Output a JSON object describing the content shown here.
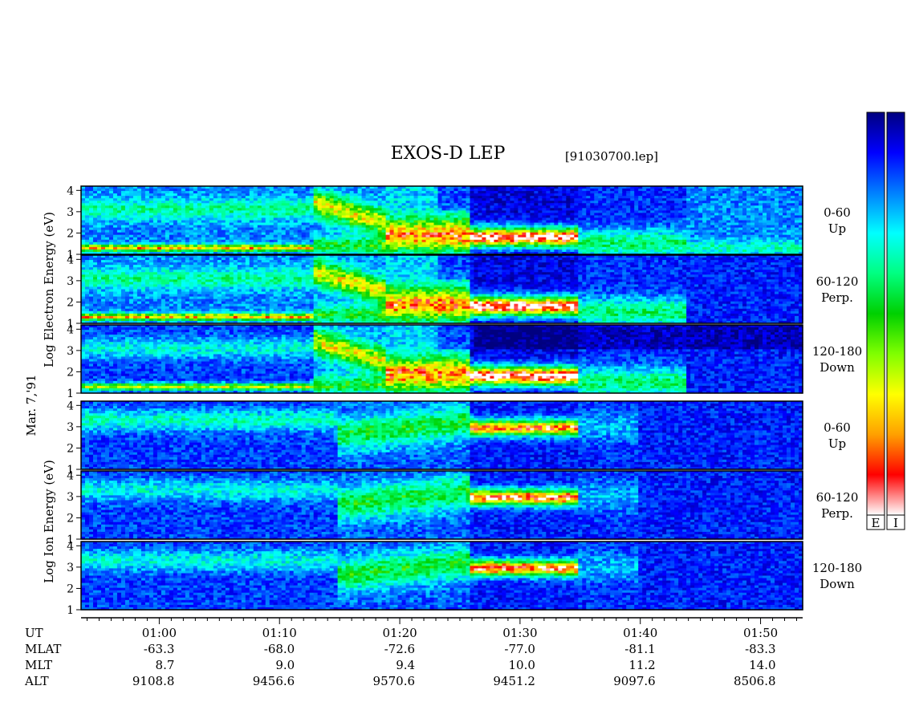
{
  "title": "EXOS-D LEP",
  "file_label": "[91030700.lep]",
  "date_label": "Mar. 7,'91",
  "electron_ylabel": "Log  Electron  Energy (eV)",
  "ion_ylabel": "Log  Ion  Energy (eV)",
  "colorbar_labels": [
    "E",
    "I"
  ],
  "colorbar_colors": [
    "#000080",
    "#0000ff",
    "#0080ff",
    "#00ffff",
    "#00ff80",
    "#00d000",
    "#80ff00",
    "#ffff00",
    "#ffa000",
    "#ff0000",
    "#ffffff"
  ],
  "chart_data": {
    "type": "heatmap",
    "x_unit": "UT",
    "x_range": [
      "00:53:30",
      "01:53:30"
    ],
    "x_ticks": [
      "01:00",
      "01:10",
      "01:20",
      "01:30",
      "01:40",
      "01:50"
    ],
    "ephemeris": [
      {
        "label": "UT",
        "values": [
          "01:00",
          "01:10",
          "01:20",
          "01:30",
          "01:40",
          "01:50"
        ]
      },
      {
        "label": "MLAT",
        "values": [
          "-63.3",
          "-68.0",
          "-72.6",
          "-77.0",
          "-81.1",
          "-83.3"
        ]
      },
      {
        "label": "MLT",
        "values": [
          "8.7",
          "9.0",
          "9.4",
          "10.0",
          "11.2",
          "14.0"
        ]
      },
      {
        "label": "ALT",
        "values": [
          "9108.8",
          "9456.6",
          "9570.6",
          "9451.2",
          "9097.6",
          "8506.8"
        ]
      }
    ],
    "y_scale": "log10 energy (eV)",
    "y_ticks": [
      "1",
      "2",
      "3",
      "4"
    ],
    "ylim": [
      1,
      4.2
    ],
    "panels": [
      {
        "species": "Electron",
        "label_top": "0-60",
        "label_bottom": "Up"
      },
      {
        "species": "Electron",
        "label_top": "60-120",
        "label_bottom": "Perp."
      },
      {
        "species": "Electron",
        "label_top": "120-180",
        "label_bottom": "Down"
      },
      {
        "species": "Ion",
        "label_top": "0-60",
        "label_bottom": "Up"
      },
      {
        "species": "Ion",
        "label_top": "60-120",
        "label_bottom": "Perp."
      },
      {
        "species": "Ion",
        "label_top": "120-180",
        "label_bottom": "Down"
      }
    ]
  }
}
